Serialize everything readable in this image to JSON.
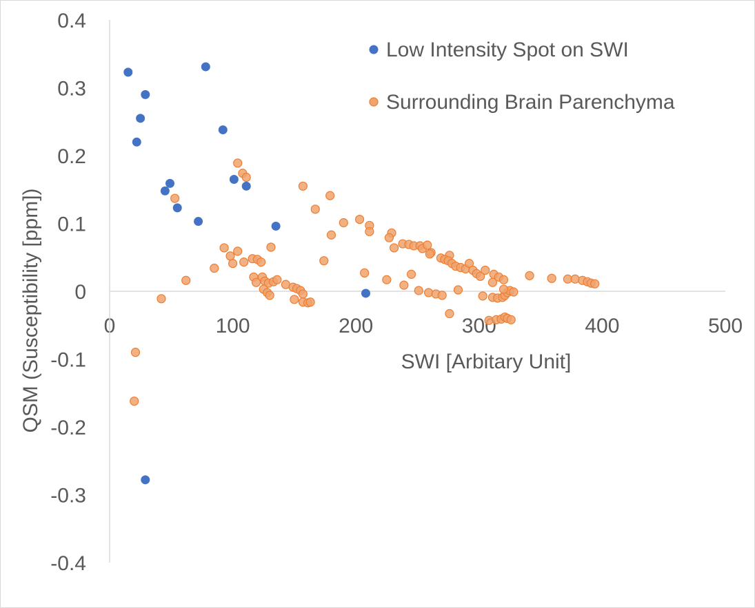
{
  "chart_data": {
    "type": "scatter",
    "title": "",
    "xlabel": "SWI [Arbitary Unit]",
    "ylabel": "QSM (Susceptibility [ppm])",
    "xlim": [
      0,
      500
    ],
    "ylim": [
      -0.4,
      0.4
    ],
    "x_ticks": [
      "0",
      "100",
      "200",
      "300",
      "400",
      "500"
    ],
    "y_ticks": [
      "0.4",
      "0.3",
      "0.2",
      "0.1",
      "0",
      "-0.1",
      "-0.2",
      "-0.3",
      "-0.4"
    ],
    "grid": false,
    "legend_position": "top-right",
    "series": [
      {
        "name": "Low Intensity Spot on SWI",
        "color": "#4472C4",
        "points": [
          [
            15,
            0.323
          ],
          [
            78,
            0.331
          ],
          [
            29,
            0.29
          ],
          [
            25,
            0.255
          ],
          [
            22,
            0.22
          ],
          [
            92,
            0.238
          ],
          [
            45,
            0.148
          ],
          [
            49,
            0.159
          ],
          [
            55,
            0.123
          ],
          [
            101,
            0.165
          ],
          [
            111,
            0.155
          ],
          [
            72,
            0.103
          ],
          [
            135,
            0.096
          ],
          [
            208,
            -0.003
          ],
          [
            29,
            -0.278
          ]
        ]
      },
      {
        "name": "Surrounding Brain Parenchyma",
        "color": "#ED7D31",
        "points": [
          [
            104,
            0.189
          ],
          [
            108,
            0.174
          ],
          [
            111,
            0.168
          ],
          [
            157,
            0.155
          ],
          [
            179,
            0.141
          ],
          [
            167,
            0.121
          ],
          [
            53,
            0.137
          ],
          [
            190,
            0.101
          ],
          [
            203,
            0.106
          ],
          [
            211,
            0.097
          ],
          [
            180,
            0.083
          ],
          [
            211,
            0.088
          ],
          [
            229,
            0.086
          ],
          [
            227,
            0.079
          ],
          [
            93,
            0.064
          ],
          [
            104,
            0.059
          ],
          [
            131,
            0.065
          ],
          [
            231,
            0.064
          ],
          [
            238,
            0.07
          ],
          [
            243,
            0.069
          ],
          [
            247,
            0.067
          ],
          [
            252,
            0.067
          ],
          [
            254,
            0.063
          ],
          [
            258,
            0.068
          ],
          [
            261,
            0.057
          ],
          [
            260,
            0.055
          ],
          [
            276,
            0.053
          ],
          [
            269,
            0.049
          ],
          [
            272,
            0.047
          ],
          [
            275,
            0.045
          ],
          [
            278,
            0.041
          ],
          [
            281,
            0.037
          ],
          [
            285,
            0.035
          ],
          [
            289,
            0.033
          ],
          [
            292,
            0.041
          ],
          [
            295,
            0.031
          ],
          [
            298,
            0.026
          ],
          [
            301,
            0.022
          ],
          [
            305,
            0.031
          ],
          [
            312,
            0.025
          ],
          [
            316,
            0.021
          ],
          [
            320,
            0.017
          ],
          [
            341,
            0.023
          ],
          [
            359,
            0.019
          ],
          [
            372,
            0.018
          ],
          [
            378,
            0.018
          ],
          [
            384,
            0.016
          ],
          [
            388,
            0.014
          ],
          [
            391,
            0.012
          ],
          [
            394,
            0.011
          ],
          [
            98,
            0.052
          ],
          [
            100,
            0.041
          ],
          [
            109,
            0.043
          ],
          [
            116,
            0.048
          ],
          [
            120,
            0.047
          ],
          [
            123,
            0.043
          ],
          [
            85,
            0.034
          ],
          [
            62,
            0.016
          ],
          [
            42,
            -0.011
          ],
          [
            174,
            0.045
          ],
          [
            117,
            0.021
          ],
          [
            119,
            0.013
          ],
          [
            124,
            0.021
          ],
          [
            126,
            0.015
          ],
          [
            129,
            0.012
          ],
          [
            133,
            0.014
          ],
          [
            136,
            0.017
          ],
          [
            125,
            0.003
          ],
          [
            128,
            -0.002
          ],
          [
            130,
            -0.006
          ],
          [
            143,
            0.01
          ],
          [
            149,
            0.006
          ],
          [
            152,
            0.004
          ],
          [
            155,
            0.001
          ],
          [
            157,
            -0.004
          ],
          [
            150,
            -0.012
          ],
          [
            157,
            -0.016
          ],
          [
            161,
            -0.017
          ],
          [
            163,
            -0.016
          ],
          [
            207,
            0.027
          ],
          [
            225,
            0.017
          ],
          [
            239,
            0.009
          ],
          [
            245,
            0.025
          ],
          [
            251,
            0.001
          ],
          [
            259,
            -0.002
          ],
          [
            265,
            -0.004
          ],
          [
            270,
            -0.006
          ],
          [
            276,
            -0.033
          ],
          [
            283,
            0.002
          ],
          [
            303,
            -0.007
          ],
          [
            311,
            -0.009
          ],
          [
            315,
            -0.01
          ],
          [
            319,
            -0.009
          ],
          [
            321,
            -0.006
          ],
          [
            323,
            -0.002
          ],
          [
            325,
            0.001
          ],
          [
            328,
            -0.001
          ],
          [
            320,
            0.003
          ],
          [
            311,
            0.013
          ],
          [
            308,
            -0.043
          ],
          [
            314,
            -0.042
          ],
          [
            318,
            -0.041
          ],
          [
            321,
            -0.038
          ],
          [
            323,
            -0.04
          ],
          [
            326,
            -0.042
          ],
          [
            21,
            -0.09
          ],
          [
            20,
            -0.162
          ]
        ]
      }
    ]
  }
}
